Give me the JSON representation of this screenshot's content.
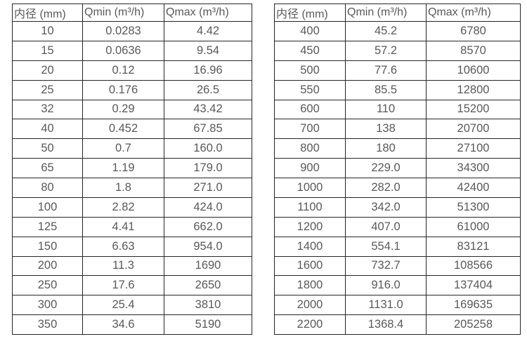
{
  "colors": {
    "background": "#ffffff",
    "border": "#262626",
    "text": "#595959"
  },
  "tables": [
    {
      "name": "flow-table-small-diameters",
      "headers": [
        "内径 (mm)",
        "Qmin (m³/h)",
        "Qmax (m³/h)"
      ],
      "rows": [
        [
          "10",
          "0.0283",
          "4.42"
        ],
        [
          "15",
          "0.0636",
          "9.54"
        ],
        [
          "20",
          "0.12",
          "16.96"
        ],
        [
          "25",
          "0.176",
          "26.5"
        ],
        [
          "32",
          "0.29",
          "43.42"
        ],
        [
          "40",
          "0.452",
          "67.85"
        ],
        [
          "50",
          "0.7",
          "160.0"
        ],
        [
          "65",
          "1.19",
          "179.0"
        ],
        [
          "80",
          "1.8",
          "271.0"
        ],
        [
          "100",
          "2.82",
          "424.0"
        ],
        [
          "125",
          "4.41",
          "662.0"
        ],
        [
          "150",
          "6.63",
          "954.0"
        ],
        [
          "200",
          "11.3",
          "1690"
        ],
        [
          "250",
          "17.6",
          "2650"
        ],
        [
          "300",
          "25.4",
          "3810"
        ],
        [
          "350",
          "34.6",
          "5190"
        ]
      ]
    },
    {
      "name": "flow-table-large-diameters",
      "headers": [
        "内径 (mm)",
        "Qmin (m³/h)",
        "Qmax (m³/h)"
      ],
      "rows": [
        [
          "400",
          "45.2",
          "6780"
        ],
        [
          "450",
          "57.2",
          "8570"
        ],
        [
          "500",
          "77.6",
          "10600"
        ],
        [
          "550",
          "85.5",
          "12800"
        ],
        [
          "600",
          "110",
          "15200"
        ],
        [
          "700",
          "138",
          "20700"
        ],
        [
          "800",
          "180",
          "27100"
        ],
        [
          "900",
          "229.0",
          "34300"
        ],
        [
          "1000",
          "282.0",
          "42400"
        ],
        [
          "1100",
          "342.0",
          "51300"
        ],
        [
          "1200",
          "407.0",
          "61000"
        ],
        [
          "1400",
          "554.1",
          "83121"
        ],
        [
          "1600",
          "732.7",
          "108566"
        ],
        [
          "1800",
          "916.0",
          "137404"
        ],
        [
          "2000",
          "1131.0",
          "169635"
        ],
        [
          "2200",
          "1368.4",
          "205258"
        ]
      ]
    }
  ]
}
